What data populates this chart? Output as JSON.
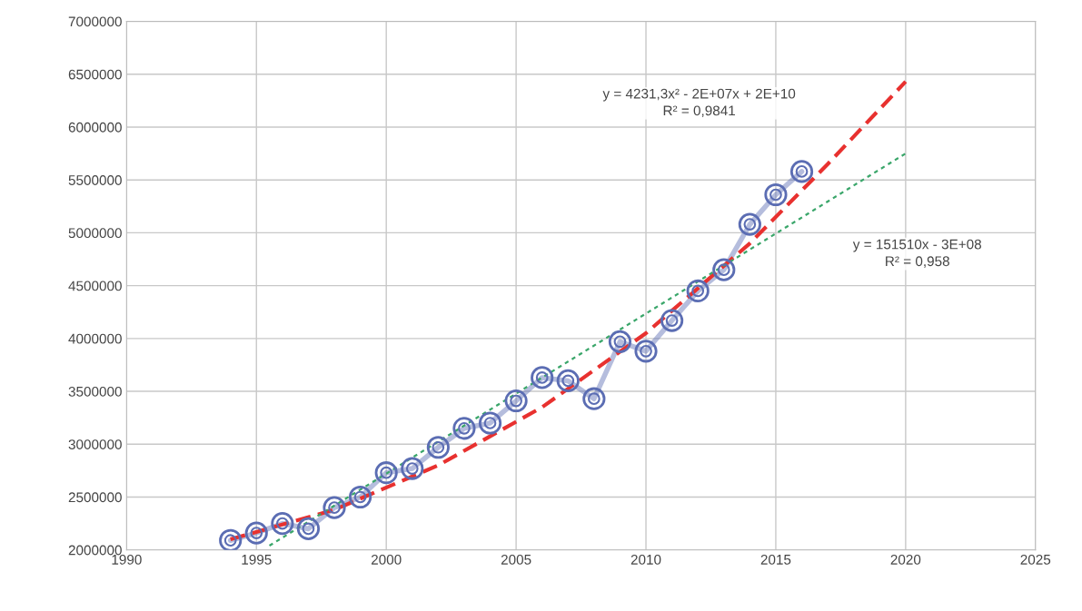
{
  "chart_data": {
    "type": "line",
    "series": [
      {
        "x": [
          1994,
          1995,
          1996,
          1997,
          1998,
          1999,
          2000,
          2001,
          2002,
          2003,
          2004,
          2005,
          2006,
          2007,
          2008,
          2009,
          2010,
          2011,
          2012,
          2013,
          2014,
          2015,
          2016
        ],
        "values": [
          2090000,
          2160000,
          2250000,
          2200000,
          2400000,
          2500000,
          2730000,
          2770000,
          2970000,
          3150000,
          3200000,
          3410000,
          3630000,
          3600000,
          3430000,
          3970000,
          3880000,
          4170000,
          4450000,
          4650000,
          5080000,
          5360000,
          5580000
        ],
        "color": "#5b6db3",
        "marker": "circle",
        "line_style": "solid"
      },
      {
        "x": [
          1994,
          1998,
          2002,
          2006,
          2010,
          2014,
          2017,
          2020
        ],
        "values": [
          2100000,
          2380000,
          2800000,
          3350000,
          4050000,
          4900000,
          5650000,
          6430000
        ],
        "color": "#e8312f",
        "marker": "none",
        "line_style": "dashed"
      },
      {
        "x": [
          1995.5,
          2020
        ],
        "values": [
          2040000,
          5750000
        ],
        "color": "#3aa66a",
        "marker": "none",
        "line_style": "dotted"
      }
    ],
    "xlim": [
      1990,
      2025
    ],
    "xticks": [
      1990,
      1995,
      2000,
      2005,
      2010,
      2015,
      2020,
      2025
    ],
    "ylim": [
      2000000,
      7000000
    ],
    "yticks": [
      2000000,
      2500000,
      3000000,
      3500000,
      4000000,
      4500000,
      5000000,
      5500000,
      6000000,
      6500000,
      7000000
    ],
    "grid": true,
    "annotations": [
      "y = 4231,3x² - 2E+07x + 2E+10\nR² = 0,9841",
      "y = 151510x - 3E+08\nR² = 0,958"
    ]
  }
}
